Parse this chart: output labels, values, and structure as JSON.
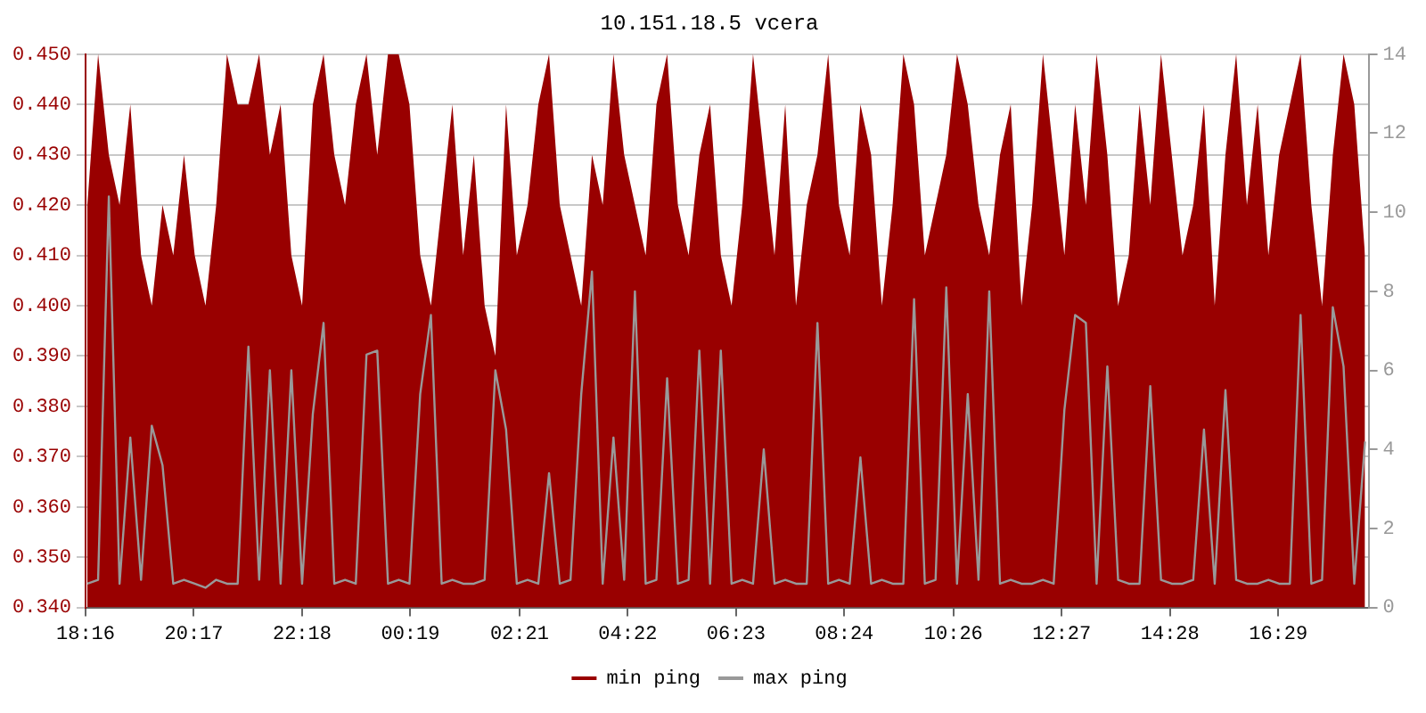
{
  "chart_data": {
    "type": "line",
    "title": "10.151.18.5 vcera",
    "legend": "bottom",
    "grid": "y",
    "marker": "none",
    "x": [
      "--01-01T18:18",
      "--01-01T18:30",
      "--01-01T18:42",
      "--01-01T18:54",
      "--01-01T19:06",
      "--01-01T19:18",
      "--01-01T19:30",
      "--01-01T19:42",
      "--01-01T19:54",
      "--01-01T20:06",
      "--01-01T20:18",
      "--01-01T20:30",
      "--01-01T20:42",
      "--01-01T20:54",
      "--01-01T21:06",
      "--01-01T21:18",
      "--01-01T21:30",
      "--01-01T21:42",
      "--01-01T21:54",
      "--01-01T22:06",
      "--01-01T22:18",
      "--01-01T22:30",
      "--01-01T22:42",
      "--01-01T22:54",
      "--01-01T23:06",
      "--01-01T23:18",
      "--01-01T23:30",
      "--01-01T23:42",
      "--01-01T23:54",
      "--01-02T00:06",
      "--01-02T00:18",
      "--01-02T00:30",
      "--01-02T00:42",
      "--01-02T00:54",
      "--01-02T01:06",
      "--01-02T01:18",
      "--01-02T01:30",
      "--01-02T01:42",
      "--01-02T01:54",
      "--01-02T02:06",
      "--01-02T02:18",
      "--01-02T02:30",
      "--01-02T02:42",
      "--01-02T02:54",
      "--01-02T03:06",
      "--01-02T03:18",
      "--01-02T03:30",
      "--01-02T03:42",
      "--01-02T03:54",
      "--01-02T04:06",
      "--01-02T04:18",
      "--01-02T04:30",
      "--01-02T04:42",
      "--01-02T04:54",
      "--01-02T05:06",
      "--01-02T05:18",
      "--01-02T05:30",
      "--01-02T05:42",
      "--01-02T05:54",
      "--01-02T06:06",
      "--01-02T06:18",
      "--01-02T06:30",
      "--01-02T06:42",
      "--01-02T06:54",
      "--01-02T07:06",
      "--01-02T07:18",
      "--01-02T07:30",
      "--01-02T07:42",
      "--01-02T07:54",
      "--01-02T08:06",
      "--01-02T08:18",
      "--01-02T08:30",
      "--01-02T08:42",
      "--01-02T08:54",
      "--01-02T09:06",
      "--01-02T09:18",
      "--01-02T09:30",
      "--01-02T09:42",
      "--01-02T09:54",
      "--01-02T10:06",
      "--01-02T10:18",
      "--01-02T10:30",
      "--01-02T10:42",
      "--01-02T10:54",
      "--01-02T11:06",
      "--01-02T11:18",
      "--01-02T11:30",
      "--01-02T11:42",
      "--01-02T11:54",
      "--01-02T12:06",
      "--01-02T12:18",
      "--01-02T12:30",
      "--01-02T12:42",
      "--01-02T12:54",
      "--01-02T13:06",
      "--01-02T13:18",
      "--01-02T13:30",
      "--01-02T13:42",
      "--01-02T13:54",
      "--01-02T14:06",
      "--01-02T14:18",
      "--01-02T14:30",
      "--01-02T14:42",
      "--01-02T14:54",
      "--01-02T15:06",
      "--01-02T15:18",
      "--01-02T15:30",
      "--01-02T15:42",
      "--01-02T15:54",
      "--01-02T16:06",
      "--01-02T16:18",
      "--01-02T16:30",
      "--01-02T16:42",
      "--01-02T16:54",
      "--01-02T17:06",
      "--01-02T17:18",
      "--01-02T17:30",
      "--01-02T17:42",
      "--01-02T17:54",
      "--01-02T18:06"
    ],
    "xlim": [
      "--01-01T18:16",
      "--01-02T18:10"
    ],
    "xticks": [
      {
        "value": "--01-01T18:16",
        "label": "18:16"
      },
      {
        "value": "--01-01T20:17",
        "label": "20:17"
      },
      {
        "value": "--01-01T22:18",
        "label": "22:18"
      },
      {
        "value": "--01-02T00:19",
        "label": "00:19"
      },
      {
        "value": "--01-02T02:21",
        "label": "02:21"
      },
      {
        "value": "--01-02T04:22",
        "label": "04:22"
      },
      {
        "value": "--01-02T06:23",
        "label": "06:23"
      },
      {
        "value": "--01-02T08:24",
        "label": "08:24"
      },
      {
        "value": "--01-02T10:26",
        "label": "10:26"
      },
      {
        "value": "--01-02T12:27",
        "label": "12:27"
      },
      {
        "value": "--01-02T14:28",
        "label": "14:28"
      },
      {
        "value": "--01-02T16:29",
        "label": "16:29"
      }
    ],
    "ylim": [
      0.34,
      0.45
    ],
    "yticks": [
      {
        "value": 0.34,
        "label": "0.340"
      },
      {
        "value": 0.35,
        "label": "0.350"
      },
      {
        "value": 0.36,
        "label": "0.360"
      },
      {
        "value": 0.37,
        "label": "0.370"
      },
      {
        "value": 0.38,
        "label": "0.380"
      },
      {
        "value": 0.39,
        "label": "0.390"
      },
      {
        "value": 0.4,
        "label": "0.400"
      },
      {
        "value": 0.41,
        "label": "0.410"
      },
      {
        "value": 0.42,
        "label": "0.420"
      },
      {
        "value": 0.43,
        "label": "0.430"
      },
      {
        "value": 0.44,
        "label": "0.440"
      },
      {
        "value": 0.45,
        "label": "0.450"
      }
    ],
    "y2lim": [
      0,
      14
    ],
    "y2ticks": [
      0,
      2,
      4,
      6,
      8,
      10,
      12,
      14
    ],
    "series": [
      {
        "name": "min ping",
        "type": "area",
        "color": "#990000",
        "values": [
          0.42,
          0.45,
          0.43,
          0.42,
          0.44,
          0.41,
          0.4,
          0.42,
          0.41,
          0.43,
          0.41,
          0.4,
          0.42,
          0.45,
          0.44,
          0.44,
          0.45,
          0.43,
          0.44,
          0.41,
          0.4,
          0.44,
          0.45,
          0.43,
          0.42,
          0.44,
          0.45,
          0.43,
          0.45,
          0.45,
          0.44,
          0.41,
          0.4,
          0.42,
          0.44,
          0.41,
          0.43,
          0.4,
          0.39,
          0.44,
          0.41,
          0.42,
          0.44,
          0.45,
          0.42,
          0.41,
          0.4,
          0.43,
          0.42,
          0.45,
          0.43,
          0.42,
          0.41,
          0.44,
          0.45,
          0.42,
          0.41,
          0.43,
          0.44,
          0.41,
          0.4,
          0.42,
          0.45,
          0.43,
          0.41,
          0.44,
          0.4,
          0.42,
          0.43,
          0.45,
          0.42,
          0.41,
          0.44,
          0.43,
          0.4,
          0.42,
          0.45,
          0.44,
          0.41,
          0.42,
          0.43,
          0.45,
          0.44,
          0.42,
          0.41,
          0.43,
          0.44,
          0.4,
          0.42,
          0.45,
          0.43,
          0.41,
          0.44,
          0.42,
          0.45,
          0.43,
          0.4,
          0.41,
          0.44,
          0.42,
          0.45,
          0.43,
          0.41,
          0.42,
          0.44,
          0.4,
          0.43,
          0.45,
          0.42,
          0.44,
          0.41,
          0.43,
          0.44,
          0.45,
          0.42,
          0.4,
          0.43,
          0.45,
          0.44,
          0.41
        ]
      },
      {
        "name": "max ping",
        "axis": "y2",
        "color": "#999999",
        "values": [
          0.6,
          0.7,
          10.4,
          0.6,
          4.3,
          0.7,
          4.6,
          3.6,
          0.6,
          0.7,
          0.6,
          0.5,
          0.7,
          0.6,
          0.6,
          6.6,
          0.7,
          6.0,
          0.6,
          6.0,
          0.6,
          4.9,
          7.2,
          0.6,
          0.7,
          0.6,
          6.4,
          6.5,
          0.6,
          0.7,
          0.6,
          5.4,
          7.4,
          0.6,
          0.7,
          0.6,
          0.6,
          0.7,
          6.0,
          4.5,
          0.6,
          0.7,
          0.6,
          3.4,
          0.6,
          0.7,
          5.4,
          8.5,
          0.6,
          4.3,
          0.7,
          8.0,
          0.6,
          0.7,
          5.8,
          0.6,
          0.7,
          6.5,
          0.6,
          6.5,
          0.6,
          0.7,
          0.6,
          4.0,
          0.6,
          0.7,
          0.6,
          0.6,
          7.2,
          0.6,
          0.7,
          0.6,
          3.8,
          0.6,
          0.7,
          0.6,
          0.6,
          7.8,
          0.6,
          0.7,
          8.1,
          0.6,
          5.4,
          0.7,
          8.0,
          0.6,
          0.7,
          0.6,
          0.6,
          0.7,
          0.6,
          5.0,
          7.4,
          7.2,
          0.6,
          6.1,
          0.7,
          0.6,
          0.6,
          5.6,
          0.7,
          0.6,
          0.6,
          0.7,
          4.5,
          0.6,
          5.5,
          0.7,
          0.6,
          0.6,
          0.7,
          0.6,
          0.6,
          7.4,
          0.6,
          0.7,
          7.6,
          6.1,
          0.6,
          4.2
        ]
      }
    ]
  }
}
